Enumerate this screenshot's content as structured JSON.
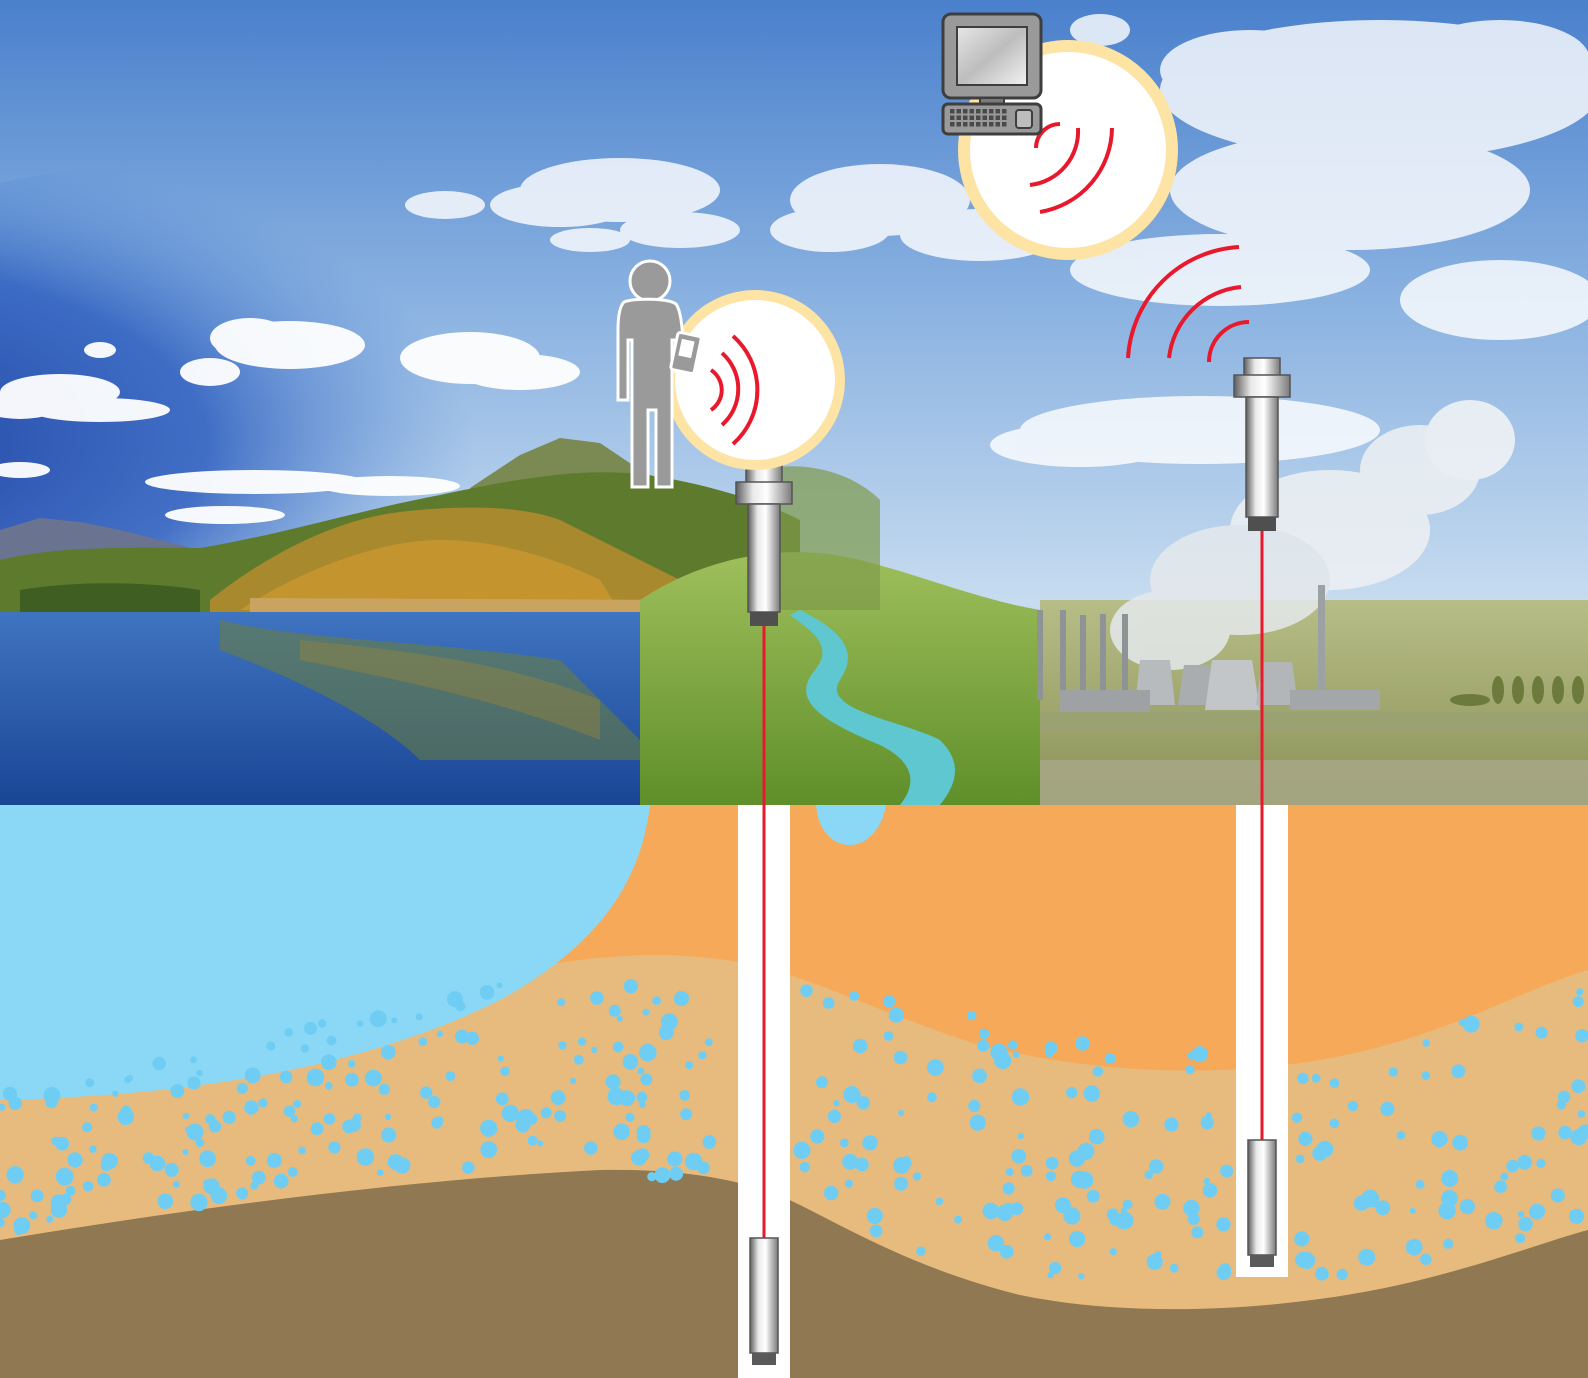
{
  "scene": {
    "colors": {
      "sky_top": "#3f74c6",
      "sky_light": "#cfe1f2",
      "lake": "#1f56a8",
      "forest": "#6f8a2c",
      "autumn": "#c48a2e",
      "marsh": "#7ea83a",
      "river": "#5fc7cf",
      "field": "#8a9456",
      "factory": "#a9adb0",
      "smoke": "#eef1f3",
      "aquifer_water": "#8bd8f6",
      "topsoil": "#f7a95a",
      "sand_layer": "#e7bb7e",
      "bedrock": "#8f7852",
      "water_droplet": "#6fcdf4",
      "signal": "#e8192c",
      "cable": "#e8192c",
      "halo_ring": "#fde3a4",
      "icon_gray": "#9a9a9a",
      "icon_outline": "#4a4a4a",
      "well_casing": "#ffffff"
    },
    "icons": {
      "person": "person-with-handheld-icon",
      "computer": "desktop-computer-icon",
      "signal": "wireless-signal-icon",
      "logger": "data-logger-icon",
      "sensor": "pressure-transducer-icon"
    }
  }
}
